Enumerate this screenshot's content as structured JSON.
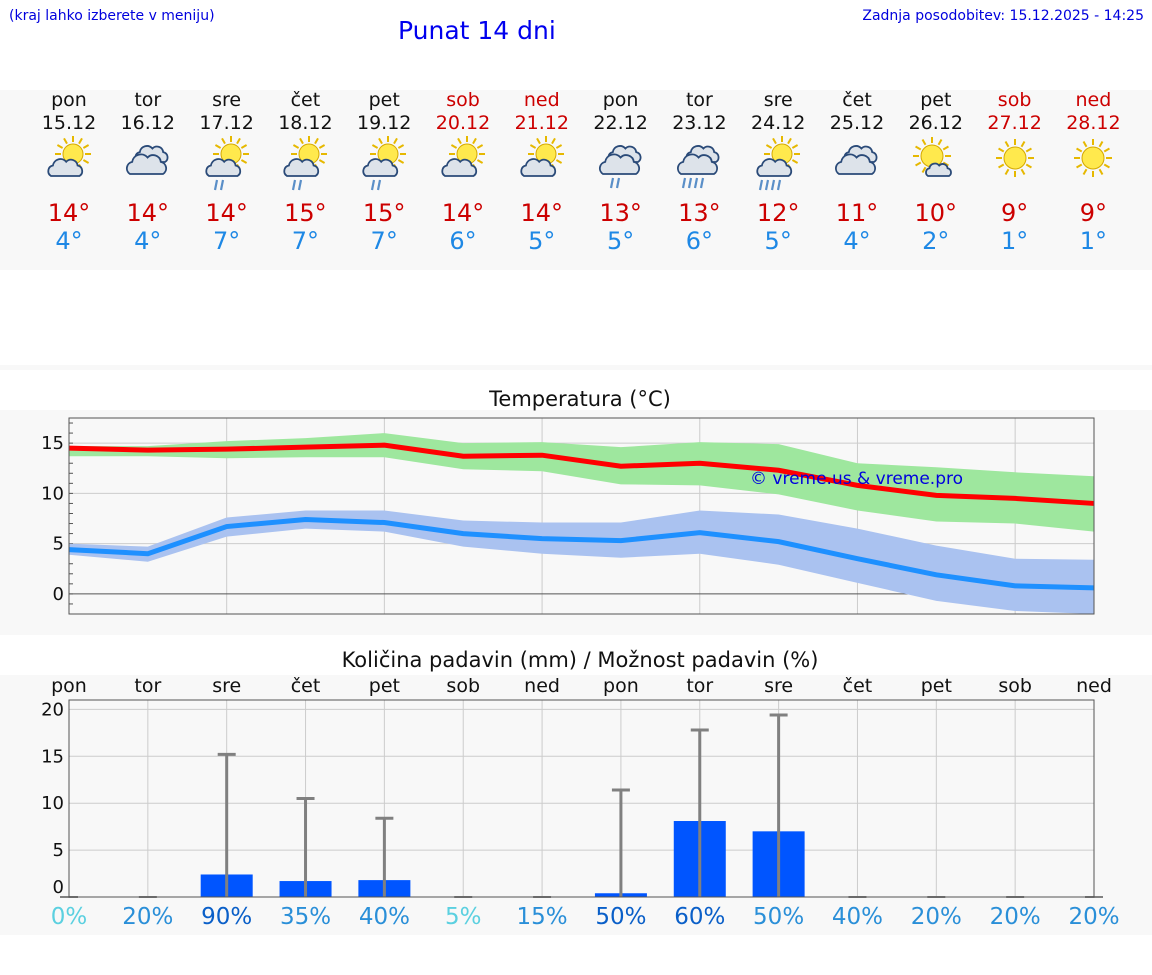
{
  "header": {
    "hint": "(kraj lahko izberete v meniju)",
    "title": "Punat 14 dni",
    "updated": "Zadnja posodobitev: 15.12.2025 - 14:25"
  },
  "days": [
    {
      "name": "pon",
      "date": "15.12",
      "weekend": false,
      "icon": "sun-cloud-icon",
      "max": "14°",
      "min": "4°"
    },
    {
      "name": "tor",
      "date": "16.12",
      "weekend": false,
      "icon": "cloudy-icon",
      "max": "14°",
      "min": "4°"
    },
    {
      "name": "sre",
      "date": "17.12",
      "weekend": false,
      "icon": "sun-cloud-rain-icon",
      "max": "14°",
      "min": "7°"
    },
    {
      "name": "čet",
      "date": "18.12",
      "weekend": false,
      "icon": "sun-cloud-rain-icon",
      "max": "15°",
      "min": "7°"
    },
    {
      "name": "pet",
      "date": "19.12",
      "weekend": false,
      "icon": "sun-cloud-rain-icon",
      "max": "15°",
      "min": "7°"
    },
    {
      "name": "sob",
      "date": "20.12",
      "weekend": true,
      "icon": "sun-cloud-icon-big",
      "max": "14°",
      "min": "6°"
    },
    {
      "name": "ned",
      "date": "21.12",
      "weekend": true,
      "icon": "sun-cloud-icon-big",
      "max": "14°",
      "min": "5°"
    },
    {
      "name": "pon",
      "date": "22.12",
      "weekend": false,
      "icon": "cloudy-rain-icon",
      "max": "13°",
      "min": "5°"
    },
    {
      "name": "tor",
      "date": "23.12",
      "weekend": false,
      "icon": "cloudy-heavy-rain-icon",
      "max": "13°",
      "min": "6°"
    },
    {
      "name": "sre",
      "date": "24.12",
      "weekend": false,
      "icon": "sun-cloud-heavy-rain-icon",
      "max": "12°",
      "min": "5°"
    },
    {
      "name": "čet",
      "date": "25.12",
      "weekend": false,
      "icon": "cloudy-icon",
      "max": "11°",
      "min": "4°"
    },
    {
      "name": "pet",
      "date": "26.12",
      "weekend": false,
      "icon": "sun-small-cloud-icon",
      "max": "10°",
      "min": "2°"
    },
    {
      "name": "sob",
      "date": "27.12",
      "weekend": true,
      "icon": "sun-icon",
      "max": "9°",
      "min": "1°"
    },
    {
      "name": "ned",
      "date": "28.12",
      "weekend": true,
      "icon": "sun-icon",
      "max": "9°",
      "min": "1°"
    }
  ],
  "chart_data": [
    {
      "type": "line",
      "title": "Temperatura (°C)",
      "watermark": "© vreme.us & vreme.pro",
      "ylim": [
        -2,
        17.5
      ],
      "yticks": [
        0,
        5,
        10,
        15
      ],
      "x": [
        "15.12",
        "16.12",
        "17.12",
        "18.12",
        "19.12",
        "20.12",
        "21.12",
        "22.12",
        "23.12",
        "24.12",
        "25.12",
        "26.12",
        "27.12",
        "28.12"
      ],
      "series": [
        {
          "name": "max",
          "color": "#ff0000",
          "values": [
            14.5,
            14.3,
            14.4,
            14.6,
            14.8,
            13.7,
            13.8,
            12.7,
            13.0,
            12.3,
            10.8,
            9.8,
            9.5,
            9.0
          ],
          "band_low": [
            13.7,
            13.7,
            13.5,
            13.6,
            13.6,
            12.4,
            12.2,
            10.9,
            10.8,
            9.9,
            8.3,
            7.2,
            7.0,
            6.2
          ],
          "band_high": [
            14.7,
            14.7,
            15.2,
            15.5,
            16.0,
            15.0,
            15.1,
            14.6,
            15.1,
            14.9,
            13.0,
            12.6,
            12.1,
            11.7
          ],
          "band_color": "#9ee79e"
        },
        {
          "name": "min",
          "color": "#1e90ff",
          "values": [
            4.4,
            4.0,
            6.7,
            7.4,
            7.1,
            6.0,
            5.5,
            5.3,
            6.1,
            5.2,
            3.5,
            1.9,
            0.8,
            0.6
          ],
          "band_low": [
            3.9,
            3.2,
            5.7,
            6.5,
            6.2,
            4.7,
            4.0,
            3.6,
            4.0,
            2.9,
            1.1,
            -0.7,
            -1.7,
            -2.0
          ],
          "band_high": [
            5.0,
            4.7,
            7.6,
            8.3,
            8.3,
            7.3,
            7.1,
            7.1,
            8.3,
            7.9,
            6.5,
            4.8,
            3.5,
            3.4
          ],
          "band_color": "#aac2f0"
        }
      ]
    },
    {
      "type": "bar",
      "title": "Količina padavin (mm) / Možnost padavin (%)",
      "ylim": [
        0,
        21
      ],
      "yticks": [
        0,
        5,
        10,
        15,
        20
      ],
      "categories": [
        "pon",
        "tor",
        "sre",
        "čet",
        "pet",
        "sob",
        "ned",
        "pon",
        "tor",
        "sre",
        "čet",
        "pet",
        "sob",
        "ned"
      ],
      "values": [
        0,
        0,
        2.4,
        1.7,
        1.8,
        0,
        0,
        0.4,
        8.1,
        7.0,
        0,
        0,
        0,
        0
      ],
      "error_max": [
        0,
        0,
        15.2,
        10.5,
        8.4,
        0,
        0,
        11.4,
        17.8,
        19.4,
        0,
        0,
        0,
        0
      ],
      "bar_color": "#0055ff",
      "error_color": "#808080",
      "probability": [
        "0%",
        "20%",
        "90%",
        "35%",
        "40%",
        "5%",
        "15%",
        "50%",
        "60%",
        "50%",
        "40%",
        "20%",
        "20%",
        "20%"
      ],
      "probability_colors": [
        "#5bd0e0",
        "#2a8fd8",
        "#0a5fc8",
        "#2a8fd8",
        "#2a8fd8",
        "#5bd0e0",
        "#2a8fd8",
        "#0a5fc8",
        "#0a5fc8",
        "#2a8fd8",
        "#2a8fd8",
        "#2a8fd8",
        "#2a8fd8",
        "#2a8fd8"
      ]
    }
  ]
}
